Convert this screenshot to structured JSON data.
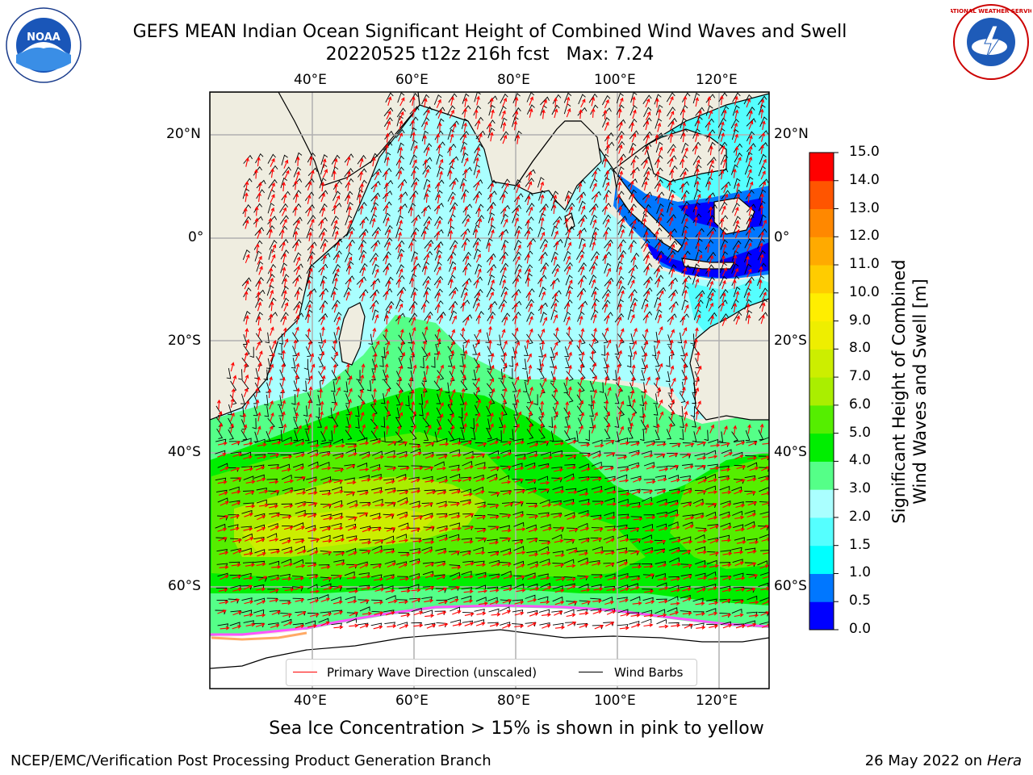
{
  "title": {
    "line1": "GEFS MEAN Indian Ocean Significant Height of Combined Wind Waves and Swell",
    "line2": "20220525 t12z 216h fcst   Max: 7.24"
  },
  "logos": {
    "left": {
      "name": "noaa-logo",
      "text": "NOAA"
    },
    "right": {
      "name": "nws-logo",
      "text": "NATIONAL WEATHER SERVICE"
    }
  },
  "map": {
    "lon_ticks_top": [
      "40°E",
      "60°E",
      "80°E",
      "100°E",
      "120°E"
    ],
    "lon_ticks_bottom": [
      "40°E",
      "60°E",
      "80°E",
      "100°E",
      "120°E"
    ],
    "lat_ticks_left": [
      "20°N",
      "0°",
      "20°S",
      "40°S",
      "60°S"
    ],
    "lat_ticks_right": [
      "20°N",
      "0°",
      "20°S",
      "40°S",
      "60°S"
    ],
    "land_color": "#efede0",
    "sea_ice_color": "#ffffff",
    "grid_color": "#b0b0b0"
  },
  "colorbar": {
    "label_line1": "Significant Height of Combined",
    "label_line2": "Wind Waves and Swell [m]",
    "ticks": [
      "15.0",
      "14.0",
      "13.0",
      "12.0",
      "11.0",
      "10.0",
      "9.0",
      "8.0",
      "7.0",
      "6.0",
      "5.0",
      "4.0",
      "3.0",
      "2.0",
      "1.5",
      "1.0",
      "0.5",
      "0.0"
    ],
    "levels": [
      0.0,
      0.5,
      1.0,
      1.5,
      2.0,
      3.0,
      4.0,
      5.0,
      6.0,
      7.0,
      8.0,
      9.0,
      10.0,
      11.0,
      12.0,
      13.0,
      14.0,
      15.0
    ],
    "colors": [
      "#0000ff",
      "#0077ff",
      "#00ffff",
      "#55ffff",
      "#aaffff",
      "#55ff88",
      "#00ee00",
      "#55ee00",
      "#aaee00",
      "#ccee00",
      "#eeee00",
      "#ffee00",
      "#ffcc00",
      "#ffaa00",
      "#ff8800",
      "#ff5500",
      "#ff0000"
    ]
  },
  "legend": {
    "wave_direction": "Primary Wave Direction (unscaled)",
    "wave_direction_color": "#ff0000",
    "wind_barbs": "Wind Barbs",
    "wind_barbs_color": "#000000"
  },
  "subtitle": "Sea Ice Concentration > 15% is shown in pink to yellow",
  "footer": {
    "left": "NCEP/EMC/Verification Post Processing Product Generation Branch",
    "right_date": "26 May 2022 on",
    "right_host": "Hera"
  }
}
